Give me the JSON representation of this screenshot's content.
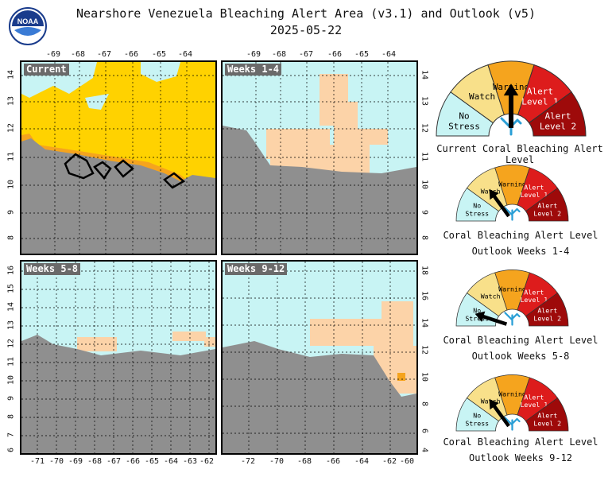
{
  "header": {
    "title_line1": "Nearshore Venezuela Bleaching Alert Area (v3.1) and Outlook (v5)",
    "title_line2": "2025-05-22",
    "logo_text": "NOAA"
  },
  "colors": {
    "no_stress": "#c8f4f4",
    "watch": "#f8e08a",
    "bleach_watch_map": "#ffd200",
    "warning": "#f5a41e",
    "alert1": "#dd1c1c",
    "alert2": "#9e0a0a",
    "land": "#8f8f8f",
    "outlook_watch": "#fcd3a8"
  },
  "panels": {
    "current": {
      "label": "Current",
      "top_ticks": [
        "-69",
        "-68",
        "-67",
        "-66",
        "-65",
        "-64"
      ],
      "left_ticks": [
        "14",
        "13",
        "12",
        "11",
        "10",
        "9",
        "8"
      ]
    },
    "weeks_1_4": {
      "label": "Weeks 1-4",
      "top_ticks": [
        "-69",
        "-68",
        "-67",
        "-66",
        "-65",
        "-64"
      ],
      "right_ticks": [
        "14",
        "13",
        "12",
        "11",
        "10",
        "9",
        "8"
      ]
    },
    "weeks_5_8": {
      "label": "Weeks 5-8",
      "left_ticks": [
        "16",
        "15",
        "14",
        "13",
        "12",
        "11",
        "10",
        "9",
        "8",
        "7",
        "6"
      ],
      "bottom_ticks": [
        "-71",
        "-70",
        "-69",
        "-68",
        "-67",
        "-66",
        "-65",
        "-64",
        "-63",
        "-62"
      ]
    },
    "weeks_9_12": {
      "label": "Weeks 9-12",
      "right_ticks": [
        "18",
        "16",
        "14",
        "12",
        "10",
        "8",
        "6",
        "4"
      ],
      "bottom_ticks": [
        "-72",
        "-70",
        "-68",
        "-66",
        "-64",
        "-62",
        "-60"
      ]
    }
  },
  "gauge_labels": {
    "no_stress": [
      "No",
      "Stress"
    ],
    "watch": "Watch",
    "warning": "Warning",
    "alert1": [
      "Alert",
      "Level 1"
    ],
    "alert2": [
      "Alert",
      "Level 2"
    ]
  },
  "gauges": [
    {
      "caption1": "Current Coral Bleaching Alert Level",
      "caption2": "",
      "level": "warning"
    },
    {
      "caption1": "Coral Bleaching Alert Level",
      "caption2": "Outlook Weeks 1-4",
      "level": "watch"
    },
    {
      "caption1": "Coral Bleaching Alert Level",
      "caption2": "Outlook Weeks 5-8",
      "level": "no_stress"
    },
    {
      "caption1": "Coral Bleaching Alert Level",
      "caption2": "Outlook Weeks 9-12",
      "level": "watch"
    }
  ],
  "chart_data": {
    "type": "heatmap",
    "title": "Nearshore Venezuela Bleaching Alert Area (v3.1) and Outlook (v5)",
    "date": "2025-05-22",
    "categories": [
      "No Stress",
      "Watch",
      "Warning",
      "Alert Level 1",
      "Alert Level 2"
    ],
    "maps": [
      {
        "name": "Current",
        "lon_ticks": [
          -69,
          -68,
          -67,
          -66,
          -65,
          -64
        ],
        "lat_ticks": [
          8,
          9,
          10,
          11,
          12,
          13,
          14
        ],
        "dominant": "Watch",
        "gauge_level": "Warning"
      },
      {
        "name": "Weeks 1-4",
        "lon_ticks": [
          -69,
          -68,
          -67,
          -66,
          -65,
          -64
        ],
        "lat_ticks": [
          8,
          9,
          10,
          11,
          12,
          13,
          14
        ],
        "dominant": "No Stress",
        "gauge_level": "Watch"
      },
      {
        "name": "Weeks 5-8",
        "lon_ticks": [
          -71,
          -70,
          -69,
          -68,
          -67,
          -66,
          -65,
          -64,
          -63,
          -62
        ],
        "lat_ticks": [
          6,
          7,
          8,
          9,
          10,
          11,
          12,
          13,
          14,
          15,
          16
        ],
        "dominant": "No Stress",
        "gauge_level": "No Stress"
      },
      {
        "name": "Weeks 9-12",
        "lon_ticks": [
          -72,
          -70,
          -68,
          -66,
          -64,
          -62,
          -60
        ],
        "lat_ticks": [
          4,
          6,
          8,
          10,
          12,
          14,
          16,
          18
        ],
        "dominant": "No Stress",
        "gauge_level": "Watch"
      }
    ]
  }
}
